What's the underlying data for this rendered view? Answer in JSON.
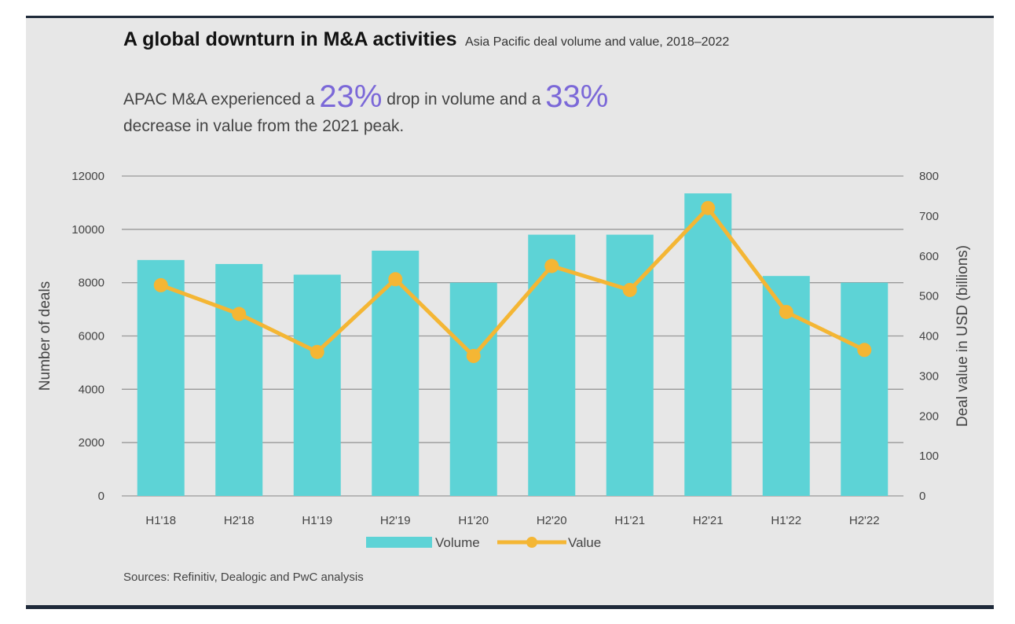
{
  "header": {
    "title": "A global downturn in M&A activities",
    "subtitle": "Asia Pacific deal volume and value, 2018–2022"
  },
  "headline": {
    "part1": "APAC M&A experienced a ",
    "pct1": "23%",
    "part2": " drop in volume and a ",
    "pct2": "33%",
    "part3": "decrease in value from the 2021 peak."
  },
  "colors": {
    "volume": "#5dd3d6",
    "value": "#f4b634",
    "grid": "#999999",
    "text": "#444444"
  },
  "chart_data": {
    "type": "bar",
    "categories": [
      "H1'18",
      "H2'18",
      "H1'19",
      "H2'19",
      "H1'20",
      "H2'20",
      "H1'21",
      "H2'21",
      "H1'22",
      "H2'22"
    ],
    "series": [
      {
        "name": "Volume",
        "type": "bar",
        "axis": "left",
        "values": [
          8850,
          8700,
          8300,
          9200,
          8000,
          9800,
          9800,
          11350,
          8250,
          8000
        ]
      },
      {
        "name": "Value",
        "type": "line",
        "axis": "right",
        "values": [
          527,
          455,
          360,
          542,
          350,
          575,
          515,
          720,
          460,
          365
        ]
      }
    ],
    "ylabel": "Number of deals",
    "ylabel_right": "Deal value in USD (billions)",
    "ylim": [
      0,
      12000
    ],
    "yticks": [
      0,
      2000,
      4000,
      6000,
      8000,
      10000,
      12000
    ],
    "ylim_right": [
      0,
      800
    ],
    "yticks_right": [
      0,
      100,
      200,
      300,
      400,
      500,
      600,
      700,
      800
    ],
    "grid": true,
    "legend_position": "bottom"
  },
  "source": "Sources: Refinitiv, Dealogic and PwC analysis"
}
